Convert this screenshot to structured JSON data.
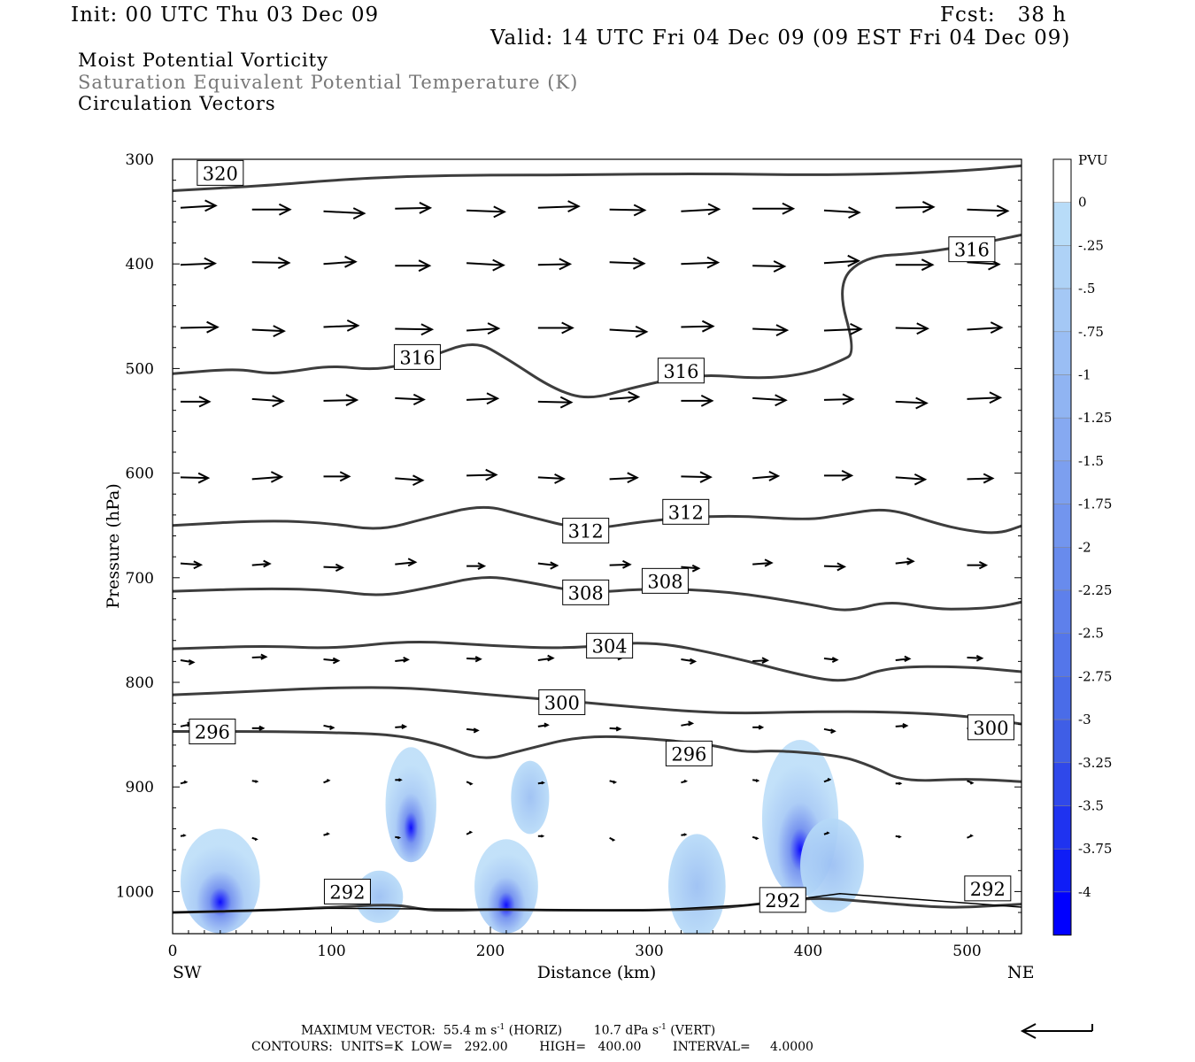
{
  "header": {
    "init": "Init: 00 UTC Thu 03 Dec 09",
    "fcst": "Fcst:   38 h",
    "valid": "Valid: 14 UTC Fri 04 Dec 09 (09 EST Fri 04 Dec 09)",
    "field1": "Moist Potential Vorticity",
    "field2": "Saturation Equivalent Potential Temperature (K)",
    "field3": "Circulation Vectors"
  },
  "footer": {
    "max_vector_label": "MAXIMUM VECTOR:",
    "max_vector_horiz": "55.4 m s",
    "horiz_tag": "(HORIZ)",
    "max_vector_vert": "10.7 dPa s",
    "vert_tag": "(VERT)",
    "exp": "-1",
    "contours": "CONTOURS:  UNITS=K  LOW=   292.00        HIGH=   400.00        INTERVAL=     4.0000"
  },
  "colors": {
    "contour": "#3d3d3d",
    "vector": "#000000",
    "pv_light": "#b8dcf8",
    "pv_dark": "#0000ff"
  },
  "chart_data": {
    "type": "line",
    "title": "Moist Potential Vorticity",
    "xlabel": "Distance (km)",
    "ylabel": "Pressure (hPa)",
    "xlim": [
      0,
      535
    ],
    "ylim": [
      1040,
      300
    ],
    "x_ticks": [
      0,
      100,
      200,
      300,
      400,
      500
    ],
    "y_ticks": [
      300,
      400,
      500,
      600,
      700,
      800,
      900,
      1000
    ],
    "x_end_labels": {
      "left": "SW",
      "right": "NE"
    },
    "grid": false,
    "legend": {
      "title": "PVU",
      "placement": "right",
      "levels": [
        "0",
        "-.25",
        "-.5",
        "-.75",
        "-1",
        "-1.25",
        "-1.5",
        "-1.75",
        "-2",
        "-2.25",
        "-2.5",
        "-2.75",
        "-3",
        "-3.25",
        "-3.5",
        "-3.75",
        "-4"
      ],
      "colors": [
        "#ffffff",
        "#ffffff",
        "#b8dcf8",
        "#aed2f6",
        "#a4c8f5",
        "#9abef4",
        "#90b4f2",
        "#86a9f1",
        "#7c9fef",
        "#7295ee",
        "#688bed",
        "#5e80eb",
        "#5476ea",
        "#4a6ce8",
        "#3f5ee6",
        "#2f48ea",
        "#1f33f0",
        "#0f1df6",
        "#0000ff"
      ]
    },
    "series": [
      {
        "name": "320",
        "label_at": [
          30,
          313
        ],
        "x": [
          0,
          60,
          100,
          150,
          200,
          250,
          300,
          350,
          400,
          450,
          500,
          535
        ],
        "y": [
          330,
          325,
          320,
          316,
          315,
          315,
          314,
          314,
          315,
          314,
          311,
          306
        ]
      },
      {
        "name": "316",
        "label_at": [
          154,
          489
        ],
        "x": [
          0,
          40,
          60,
          75,
          100,
          130,
          160,
          190,
          210,
          240,
          262,
          290,
          330,
          370,
          400,
          420,
          430,
          418,
          435,
          470,
          510,
          535
        ],
        "y": [
          505,
          500,
          505,
          503,
          497,
          502,
          490,
          473,
          490,
          520,
          530,
          518,
          505,
          510,
          505,
          493,
          485,
          420,
          393,
          390,
          380,
          372
        ]
      },
      {
        "name": "312",
        "label_at": [
          260,
          655
        ],
        "x": [
          0,
          60,
          100,
          130,
          160,
          195,
          220,
          260,
          300,
          350,
          400,
          420,
          450,
          480,
          500,
          520,
          535
        ],
        "y": [
          650,
          645,
          648,
          655,
          643,
          630,
          640,
          655,
          645,
          640,
          645,
          640,
          633,
          648,
          655,
          658,
          650
        ]
      },
      {
        "name": "308",
        "label_at": [
          260,
          714
        ],
        "x": [
          0,
          60,
          100,
          130,
          160,
          195,
          220,
          260,
          300,
          350,
          400,
          425,
          450,
          480,
          500,
          520,
          535
        ],
        "y": [
          713,
          710,
          712,
          718,
          710,
          698,
          703,
          715,
          710,
          713,
          725,
          733,
          722,
          730,
          730,
          728,
          723
        ]
      },
      {
        "name": "304",
        "label_at": [
          275,
          765
        ],
        "x": [
          0,
          60,
          100,
          150,
          200,
          250,
          300,
          350,
          400,
          425,
          450,
          500,
          535
        ],
        "y": [
          768,
          765,
          768,
          760,
          765,
          768,
          760,
          775,
          795,
          800,
          785,
          785,
          790
        ]
      },
      {
        "name": "300",
        "label_at": [
          245,
          819
        ],
        "x": [
          0,
          60,
          100,
          150,
          200,
          250,
          300,
          350,
          400,
          450,
          500,
          535
        ],
        "y": [
          812,
          808,
          805,
          805,
          812,
          818,
          825,
          830,
          828,
          828,
          832,
          840
        ]
      },
      {
        "name": "296",
        "label_at": [
          25,
          847
        ],
        "x": [
          0,
          60,
          100,
          140,
          170,
          195,
          220,
          260,
          310,
          340,
          360,
          380,
          420,
          440,
          460,
          500,
          535
        ],
        "y": [
          847,
          847,
          848,
          850,
          860,
          875,
          865,
          850,
          855,
          860,
          867,
          865,
          870,
          880,
          895,
          892,
          895
        ]
      },
      {
        "name": "292",
        "label_at": [
          110,
          1000
        ],
        "x": [
          0,
          60,
          100,
          140,
          160,
          180,
          200,
          250,
          300,
          350,
          400,
          440,
          480,
          500,
          535
        ],
        "y": [
          1020,
          1018,
          1015,
          1012,
          1018,
          1018,
          1017,
          1018,
          1018,
          1016,
          1005,
          1010,
          1015,
          1015,
          1012
        ]
      }
    ],
    "extra_labels": [
      {
        "text": "316",
        "x": 320,
        "y": 502
      },
      {
        "text": "312",
        "x": 323,
        "y": 637
      },
      {
        "text": "308",
        "x": 310,
        "y": 703
      },
      {
        "text": "300",
        "x": 515,
        "y": 843
      },
      {
        "text": "296",
        "x": 325,
        "y": 868
      },
      {
        "text": "292",
        "x": 384,
        "y": 1008
      },
      {
        "text": "292",
        "x": 513,
        "y": 997
      },
      {
        "text": "316",
        "x": 503,
        "y": 386
      }
    ],
    "vector_rows": [
      {
        "p": 348,
        "len": 44
      },
      {
        "p": 400,
        "len": 40
      },
      {
        "p": 462,
        "len": 40
      },
      {
        "p": 530,
        "len": 36
      },
      {
        "p": 604,
        "len": 32
      },
      {
        "p": 688,
        "len": 22
      },
      {
        "p": 778,
        "len": 16
      },
      {
        "p": 843,
        "len": 12
      },
      {
        "p": 895,
        "len": 6
      },
      {
        "p": 947,
        "len": 5
      }
    ],
    "pv_blobs": [
      {
        "x": 150,
        "p": 917,
        "rx": 16,
        "rp": 55
      },
      {
        "x": 225,
        "p": 910,
        "rx": 12,
        "rp": 35
      },
      {
        "x": 210,
        "p": 995,
        "rx": 20,
        "rp": 45
      },
      {
        "x": 330,
        "p": 995,
        "rx": 18,
        "rp": 50
      },
      {
        "x": 395,
        "p": 930,
        "rx": 24,
        "rp": 75
      },
      {
        "x": 415,
        "p": 975,
        "rx": 20,
        "rp": 45
      },
      {
        "x": 30,
        "p": 990,
        "rx": 25,
        "rp": 50
      },
      {
        "x": 130,
        "p": 1005,
        "rx": 15,
        "rp": 25
      }
    ]
  }
}
